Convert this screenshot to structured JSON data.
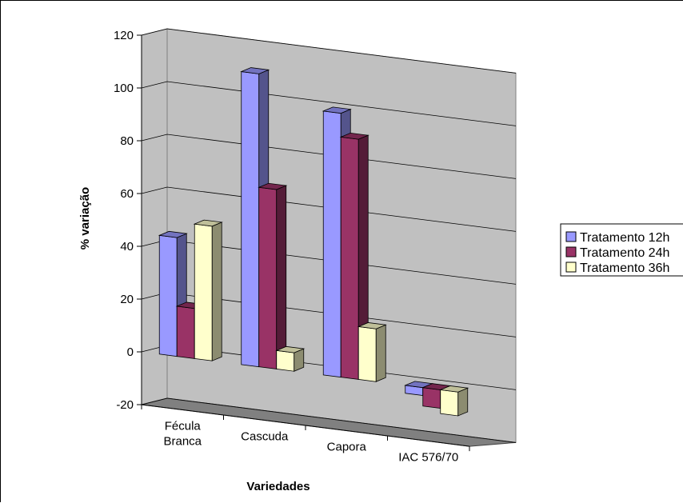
{
  "chart_data": {
    "type": "bar",
    "style": "3d-clustered-column",
    "categories": [
      [
        "Fécula",
        "Branca"
      ],
      [
        "Cascuda"
      ],
      [
        "Capora"
      ],
      [
        "IAC 576/70"
      ]
    ],
    "series": [
      {
        "name": "Tratamento 12h",
        "values": [
          45,
          111,
          100,
          -3
        ],
        "color": "#9999ff"
      },
      {
        "name": "Tratamento 24h",
        "values": [
          19,
          68,
          91,
          -7
        ],
        "color": "#993366"
      },
      {
        "name": "Tratamento 36h",
        "values": [
          51,
          7,
          20,
          -9
        ],
        "color": "#ffffcc"
      }
    ],
    "title": "",
    "xlabel": "Variedades",
    "ylabel": "% variação",
    "ylim": [
      -20,
      120
    ],
    "yticks": [
      "120",
      "100",
      "80",
      "60",
      "40",
      "20",
      "0",
      "-20"
    ],
    "grid": true,
    "legend_position": "right",
    "wall_color": "#c0c0c0",
    "floor_color": "#808080"
  }
}
